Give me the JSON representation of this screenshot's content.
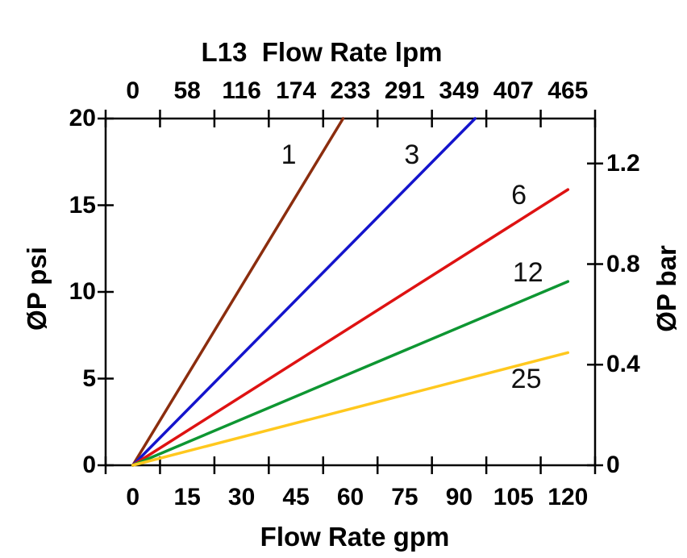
{
  "chart_data": {
    "type": "line",
    "title": "L13  Flow Rate lpm",
    "background": "#FFFFFF",
    "axis_color": "#000000",
    "top_axis": {
      "unit": "lpm",
      "tick_labels": [
        "0",
        "58",
        "116",
        "174",
        "233",
        "291",
        "349",
        "407",
        "465"
      ]
    },
    "bottom_axis": {
      "label": "Flow Rate gpm",
      "unit": "gpm",
      "tick_labels": [
        "0",
        "15",
        "30",
        "45",
        "60",
        "75",
        "90",
        "105",
        "120"
      ],
      "tick_values": [
        0,
        15,
        30,
        45,
        60,
        75,
        90,
        105,
        120
      ],
      "range": [
        0,
        120
      ]
    },
    "left_axis": {
      "label": "ØP psi",
      "unit": "psi",
      "tick_labels": [
        "0",
        "5",
        "10",
        "15",
        "20"
      ],
      "tick_values": [
        0,
        5,
        10,
        15,
        20
      ],
      "range": [
        0,
        20
      ]
    },
    "right_axis": {
      "label": "ØP bar",
      "unit": "bar",
      "tick_labels": [
        "0",
        "0.4",
        "0.8",
        "1.2"
      ],
      "tick_values": [
        0,
        0.4,
        0.8,
        1.2
      ],
      "range": [
        0,
        1.38
      ]
    },
    "series": [
      {
        "label": "1",
        "color": "#8B2D0E",
        "points_gpm_psi": [
          [
            0,
            0
          ],
          [
            58,
            20
          ]
        ],
        "label_at_gpm_psi": [
          43,
          17.9
        ]
      },
      {
        "label": "3",
        "color": "#1414CC",
        "points_gpm_psi": [
          [
            0,
            0
          ],
          [
            94.4,
            20
          ]
        ],
        "label_at_gpm_psi": [
          77,
          17.9
        ]
      },
      {
        "label": "6",
        "color": "#DE1212",
        "points_gpm_psi": [
          [
            0,
            0
          ],
          [
            120,
            15.9
          ]
        ],
        "label_at_gpm_psi": [
          106.5,
          15.6
        ]
      },
      {
        "label": "12",
        "color": "#0E9632",
        "points_gpm_psi": [
          [
            0,
            0
          ],
          [
            120,
            10.6
          ]
        ],
        "label_at_gpm_psi": [
          109,
          11.1
        ]
      },
      {
        "label": "25",
        "color": "#FFC81E",
        "points_gpm_psi": [
          [
            0,
            0
          ],
          [
            120,
            6.5
          ]
        ],
        "label_at_gpm_psi": [
          108.5,
          5.0
        ]
      }
    ]
  }
}
